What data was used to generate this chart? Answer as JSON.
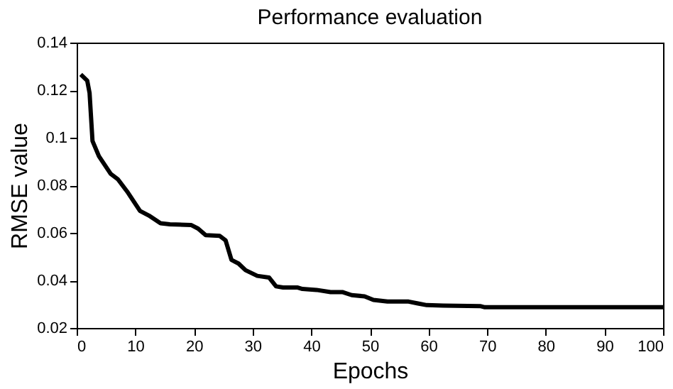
{
  "chart_data": {
    "type": "line",
    "title": "Performance evaluation",
    "xlabel": "Epochs",
    "ylabel": "RMSE value",
    "series": [
      {
        "color": "#000000",
        "x": [
          0.7,
          1.8,
          2.2,
          2.7,
          3.8,
          5.8,
          7,
          8.6,
          10.8,
          12.3,
          14.3,
          15.9,
          19.5,
          20.7,
          22,
          24.4,
          25.4,
          26.4,
          27.6,
          28.8,
          30.8,
          32.8,
          34,
          35.2,
          37.7,
          38.5,
          40.9,
          43.3,
          45.3,
          46.9,
          49.1,
          50.6,
          53,
          56.6,
          58.2,
          59.7,
          62.5,
          68.8,
          69.6,
          100
        ],
        "values": [
          0.1266,
          0.124,
          0.1188,
          0.0986,
          0.0922,
          0.0848,
          0.0826,
          0.0774,
          0.0692,
          0.0673,
          0.064,
          0.0636,
          0.0633,
          0.0618,
          0.059,
          0.0587,
          0.0568,
          0.0486,
          0.0471,
          0.0443,
          0.0419,
          0.0412,
          0.0375,
          0.037,
          0.037,
          0.0364,
          0.036,
          0.0351,
          0.0351,
          0.0338,
          0.0333,
          0.0318,
          0.0311,
          0.0311,
          0.0303,
          0.0296,
          0.0294,
          0.0292,
          0.0287,
          0.0287
        ]
      }
    ],
    "xlim": [
      0,
      100
    ],
    "xticks": [
      0,
      10,
      20,
      30,
      40,
      50,
      60,
      70,
      80,
      90,
      100
    ],
    "ylim": [
      0.02,
      0.14
    ],
    "yticks": [
      0.02,
      0.04,
      0.06,
      0.08,
      0.1,
      0.12,
      0.14
    ],
    "grid": false,
    "marker": "none",
    "line_style": "solid"
  }
}
